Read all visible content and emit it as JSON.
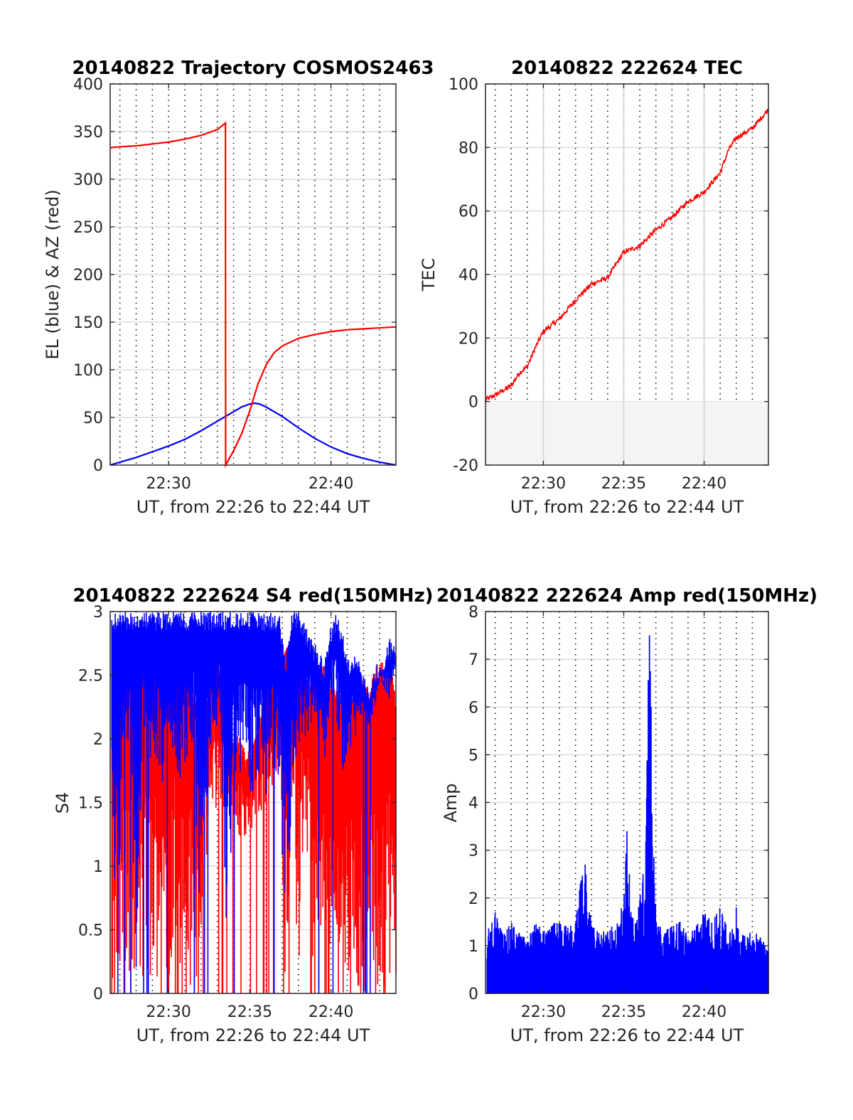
{
  "figure": {
    "date": "20140822"
  },
  "chart_data": [
    {
      "id": "p1",
      "type": "line",
      "title": "20140822 Trajectory COSMOS2463",
      "xlabel": "UT, from 22:26 to 22:44 UT",
      "ylabel": "EL (blue) & AZ (red)",
      "x_units": "minutes after 22:00 UT",
      "xlim": [
        26.4,
        44
      ],
      "ylim": [
        0,
        400
      ],
      "xticks": [
        {
          "value": 30,
          "label": "22:30"
        },
        {
          "value": 40,
          "label": "22:40"
        }
      ],
      "yticks": [
        0,
        50,
        100,
        150,
        200,
        250,
        300,
        350,
        400
      ],
      "series": [
        {
          "name": "EL",
          "color": "#0000ff",
          "x": [
            26.4,
            27,
            28,
            29,
            30,
            31,
            32,
            33,
            34,
            34.5,
            35,
            35.3,
            35.6,
            36,
            37,
            38,
            39,
            40,
            41,
            42,
            43,
            44
          ],
          "y": [
            0,
            3,
            8,
            14,
            20,
            27,
            36,
            46,
            56,
            61,
            64,
            65,
            64,
            61,
            51,
            39,
            28,
            19,
            12,
            7,
            3,
            0
          ]
        },
        {
          "name": "AZ",
          "color": "#ff0000",
          "x": [
            26.4,
            27,
            28,
            29,
            30,
            31,
            32,
            33,
            33.5,
            33.51,
            34,
            34.5,
            35,
            35.5,
            36,
            36.5,
            37,
            38,
            39,
            40,
            41,
            42,
            43,
            44
          ],
          "y": [
            333,
            334,
            335,
            337,
            339,
            342,
            346,
            352,
            359,
            0,
            15,
            33,
            57,
            85,
            105,
            118,
            125,
            133,
            137,
            140,
            142,
            143,
            144,
            145
          ]
        }
      ]
    },
    {
      "id": "p2",
      "type": "line",
      "title": "20140822 222624 TEC",
      "xlabel": "UT, from 22:26 to 22:44 UT",
      "ylabel": "TEC",
      "x_units": "minutes after 22:00 UT",
      "xlim": [
        26.4,
        44
      ],
      "ylim": [
        -20,
        100
      ],
      "xticks": [
        {
          "value": 30,
          "label": "22:30"
        },
        {
          "value": 35,
          "label": "22:35"
        },
        {
          "value": 40,
          "label": "22:40"
        }
      ],
      "yticks": [
        -20,
        0,
        20,
        40,
        60,
        80,
        100
      ],
      "series": [
        {
          "name": "TEC",
          "color": "#ff0000",
          "x": [
            26.4,
            27,
            28,
            28.5,
            29,
            29.5,
            30,
            31,
            32,
            33,
            33.5,
            34,
            35,
            36,
            37,
            38,
            39,
            40,
            41,
            41.5,
            42,
            43,
            44
          ],
          "y": [
            0.5,
            2,
            5,
            9,
            11,
            17,
            22,
            26,
            32,
            37,
            38,
            39,
            47,
            49,
            54,
            58,
            63,
            66,
            72,
            79,
            83,
            86,
            92
          ]
        }
      ]
    },
    {
      "id": "p3",
      "type": "line",
      "title": "20140822 222624 S4 red(150MHz)",
      "xlabel": "UT, from 22:26 to 22:44 UT",
      "ylabel": "S4",
      "x_units": "minutes after 22:00 UT",
      "xlim": [
        26.4,
        44
      ],
      "ylim": [
        0,
        3
      ],
      "xticks": [
        {
          "value": 30,
          "label": "22:30"
        },
        {
          "value": 35,
          "label": "22:35"
        },
        {
          "value": 40,
          "label": "22:40"
        }
      ],
      "yticks": [
        0,
        0.5,
        1,
        1.5,
        2,
        2.5,
        3
      ],
      "series": [
        {
          "color": "#ff0000",
          "x": [
            26.5,
            26.8,
            27.2,
            27.6,
            28,
            28.4,
            28.8,
            29.2,
            29.6,
            30,
            30.4,
            30.8,
            31.2,
            31.6,
            32,
            32.4,
            32.8,
            33.2,
            33.6,
            34,
            34.4,
            34.8,
            35.2,
            35.6,
            36,
            36.4,
            36.8,
            37.2,
            37.6,
            38,
            38.4,
            38.8,
            39.2,
            39.6,
            40,
            40.4,
            40.8,
            41.2,
            41.6,
            42,
            42.4,
            42.8,
            43.2,
            43.6,
            44
          ],
          "lo": [
            0,
            0,
            0,
            0,
            0,
            0,
            0,
            0,
            0.5,
            0,
            0.6,
            0,
            0,
            0,
            0.3,
            1.2,
            1.4,
            1.5,
            1.5,
            1.4,
            1.2,
            1.1,
            1.3,
            1.4,
            1.5,
            1.6,
            1.6,
            0,
            1.6,
            0,
            1.5,
            0,
            0,
            0,
            0,
            0,
            0,
            0,
            0,
            0,
            0,
            0,
            0,
            0,
            0
          ],
          "hi": [
            2.9,
            2.9,
            2.8,
            2.5,
            2.7,
            2.6,
            2.9,
            2.8,
            2.8,
            2.4,
            2.7,
            2.5,
            2.8,
            2.3,
            2.5,
            2.3,
            2.9,
            2.5,
            2.2,
            2.1,
            2.0,
            1.9,
            2.0,
            2.2,
            2.4,
            2.5,
            2.6,
            2.7,
            2.8,
            2.9,
            2.6,
            2.5,
            2.6,
            2.6,
            2.5,
            2.4,
            2.3,
            2.3,
            2.4,
            2.5,
            2.4,
            2.6,
            2.6,
            2.7,
            2.3
          ]
        },
        {
          "color": "#0000ff",
          "x": [
            26.5,
            26.8,
            27.2,
            27.6,
            28,
            28.4,
            28.8,
            29.2,
            29.6,
            30,
            30.4,
            30.8,
            31.2,
            31.6,
            32,
            32.4,
            32.8,
            33.2,
            33.6,
            34,
            34.4,
            34.8,
            35.2,
            35.6,
            36,
            36.4,
            36.8,
            37.2,
            37.6,
            38,
            38.4,
            38.8,
            39.2,
            39.6,
            40,
            40.4,
            40.8,
            41.2,
            41.6,
            42,
            42.4,
            42.8,
            43.2,
            43.6,
            44
          ],
          "lo": [
            1.9,
            0,
            2.0,
            1.8,
            0,
            1.9,
            1.8,
            1.7,
            1.6,
            1.5,
            1.7,
            1.6,
            1.9,
            1.8,
            0,
            1.6,
            2.1,
            2.0,
            0,
            1.8,
            1.6,
            1.7,
            1.5,
            1.7,
            1.5,
            1.6,
            1.4,
            0.5,
            1.3,
            1.7,
            1.9,
            2.1,
            2.0,
            1.8,
            2.3,
            2.1,
            1.7,
            1.9,
            2.0,
            2.2,
            2.1,
            2.3,
            2.4,
            2.3,
            2.6
          ],
          "hi": [
            3,
            3,
            3,
            3,
            3,
            3,
            3,
            3,
            3,
            3,
            3,
            3,
            3,
            3,
            3,
            3,
            3,
            3,
            3,
            3,
            3,
            3,
            3,
            3,
            3,
            3,
            3,
            2.6,
            3,
            3,
            2.9,
            2.8,
            2.7,
            2.6,
            2.9,
            3,
            2.8,
            2.6,
            2.7,
            2.5,
            2.4,
            2.6,
            2.6,
            2.8,
            2.7
          ]
        }
      ]
    },
    {
      "id": "p4",
      "type": "line",
      "title": "20140822 222624 Amp red(150MHz)",
      "xlabel": "UT, from 22:26 to 22:44 UT",
      "ylabel": "Amp",
      "x_units": "minutes after 22:00 UT",
      "xlim": [
        26.4,
        44
      ],
      "ylim": [
        0,
        8
      ],
      "xticks": [
        {
          "value": 30,
          "label": "22:30"
        },
        {
          "value": 35,
          "label": "22:35"
        },
        {
          "value": 40,
          "label": "22:40"
        }
      ],
      "yticks": [
        0,
        1,
        2,
        3,
        4,
        5,
        6,
        7,
        8
      ],
      "series": [
        {
          "color": "#0000ff",
          "x": [
            26.5,
            27,
            27.5,
            28,
            28.5,
            29,
            29.5,
            30,
            30.5,
            31,
            31.5,
            32,
            32.3,
            32.6,
            33,
            33.5,
            34,
            34.5,
            35,
            35.2,
            35.5,
            35.8,
            36.2,
            36.6,
            36.7,
            37,
            37.5,
            38,
            38.5,
            39,
            39.5,
            40,
            40.5,
            41,
            41.5,
            42,
            42.5,
            43,
            43.5,
            44
          ],
          "y": [
            1.3,
            1.7,
            1.2,
            1.5,
            1.3,
            1.1,
            1.5,
            1.3,
            1.4,
            1.6,
            1.4,
            1.5,
            2.3,
            2.7,
            1.4,
            1.3,
            1.3,
            1.5,
            1.9,
            3.4,
            1.6,
            1.5,
            2.5,
            7.5,
            6.0,
            1.5,
            1.3,
            1.4,
            1.5,
            1.2,
            1.4,
            1.7,
            1.5,
            1.8,
            1.3,
            1.4,
            1.2,
            1.3,
            1.2,
            0.9
          ],
          "floor": 0.9
        }
      ]
    }
  ]
}
